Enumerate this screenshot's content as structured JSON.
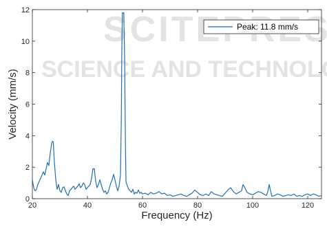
{
  "watermark": {
    "line1": "SCITEPRESS",
    "line2": "SCIENCE AND TECHNOLOGY PUBLICATIONS"
  },
  "chart_data": {
    "type": "line",
    "title": "",
    "xlabel": "Frequency (Hz)",
    "ylabel": "Velocity (mm/s)",
    "xlim": [
      20,
      125
    ],
    "ylim": [
      0,
      12
    ],
    "xticks": [
      20,
      40,
      60,
      80,
      100,
      120
    ],
    "yticks": [
      0,
      2,
      4,
      6,
      8,
      10,
      12
    ],
    "grid": false,
    "legend_position": "top-right",
    "line_color": "#1f6fb4",
    "series": [
      {
        "name": "Peak: 11.8 mm/s",
        "points": [
          [
            20,
            1.2
          ],
          [
            20.5,
            0.7
          ],
          [
            21,
            0.5
          ],
          [
            21.5,
            0.6
          ],
          [
            22,
            0.9
          ],
          [
            22.5,
            1.1
          ],
          [
            23,
            1.3
          ],
          [
            23.5,
            1.5
          ],
          [
            24,
            1.7
          ],
          [
            24.5,
            1.5
          ],
          [
            25,
            1.9
          ],
          [
            25.5,
            2.3
          ],
          [
            26,
            2.1
          ],
          [
            26.5,
            2.9
          ],
          [
            27,
            3.5
          ],
          [
            27.3,
            3.65
          ],
          [
            27.6,
            3.6
          ],
          [
            28,
            2.3
          ],
          [
            28.5,
            1.2
          ],
          [
            29,
            0.6
          ],
          [
            29.5,
            0.9
          ],
          [
            30,
            0.5
          ],
          [
            30.5,
            0.4
          ],
          [
            31,
            0.7
          ],
          [
            31.5,
            0.75
          ],
          [
            32,
            0.5
          ],
          [
            32.5,
            0.3
          ],
          [
            33,
            0.2
          ],
          [
            33.5,
            0.5
          ],
          [
            34,
            0.6
          ],
          [
            34.5,
            0.7
          ],
          [
            35,
            0.8
          ],
          [
            35.5,
            0.6
          ],
          [
            36,
            0.7
          ],
          [
            36.5,
            0.8
          ],
          [
            37,
            0.95
          ],
          [
            37.5,
            0.7
          ],
          [
            38,
            0.8
          ],
          [
            38.5,
            1.0
          ],
          [
            39,
            0.9
          ],
          [
            39.5,
            0.6
          ],
          [
            40,
            0.7
          ],
          [
            40.5,
            0.8
          ],
          [
            41,
            0.9
          ],
          [
            41.5,
            1.3
          ],
          [
            42,
            1.9
          ],
          [
            42.5,
            1.9
          ],
          [
            43,
            1.1
          ],
          [
            43.5,
            0.7
          ],
          [
            44,
            0.9
          ],
          [
            44.5,
            1.2
          ],
          [
            45,
            0.9
          ],
          [
            45.5,
            0.6
          ],
          [
            46,
            0.4
          ],
          [
            46.5,
            0.5
          ],
          [
            47,
            0.3
          ],
          [
            47.5,
            0.4
          ],
          [
            48,
            0.7
          ],
          [
            48.5,
            1.0
          ],
          [
            49,
            1.2
          ],
          [
            49.5,
            1.55
          ],
          [
            50,
            1.2
          ],
          [
            50.5,
            0.8
          ],
          [
            51,
            0.5
          ],
          [
            51.5,
            0.8
          ],
          [
            52,
            1.5
          ],
          [
            52.3,
            5.0
          ],
          [
            52.5,
            9.5
          ],
          [
            52.7,
            11.8
          ],
          [
            53.2,
            11.8
          ],
          [
            53.5,
            9.0
          ],
          [
            53.8,
            3.5
          ],
          [
            54,
            1.1
          ],
          [
            54.5,
            0.8
          ],
          [
            55,
            0.6
          ],
          [
            55.5,
            0.5
          ],
          [
            56,
            0.4
          ],
          [
            56.5,
            0.6
          ],
          [
            57,
            0.3
          ],
          [
            57.5,
            0.4
          ],
          [
            58,
            0.35
          ],
          [
            58.5,
            0.55
          ],
          [
            59,
            0.35
          ],
          [
            59.5,
            0.4
          ],
          [
            60,
            0.3
          ],
          [
            61,
            0.35
          ],
          [
            62,
            0.25
          ],
          [
            63,
            0.4
          ],
          [
            64,
            0.3
          ],
          [
            65,
            0.35
          ],
          [
            66,
            0.45
          ],
          [
            67,
            0.3
          ],
          [
            68,
            0.35
          ],
          [
            69,
            0.2
          ],
          [
            70,
            0.25
          ],
          [
            71,
            0.15
          ],
          [
            72,
            0.2
          ],
          [
            73,
            0.25
          ],
          [
            74,
            0.3
          ],
          [
            75,
            0.2
          ],
          [
            76,
            0.15
          ],
          [
            77,
            0.25
          ],
          [
            78,
            0.35
          ],
          [
            79,
            0.55
          ],
          [
            80,
            0.4
          ],
          [
            81,
            0.25
          ],
          [
            82,
            0.2
          ],
          [
            83,
            0.3
          ],
          [
            84,
            0.2
          ],
          [
            85,
            0.45
          ],
          [
            86,
            0.3
          ],
          [
            87,
            0.25
          ],
          [
            88,
            0.2
          ],
          [
            89,
            0.15
          ],
          [
            90,
            0.35
          ],
          [
            91,
            0.55
          ],
          [
            92,
            0.7
          ],
          [
            93,
            0.45
          ],
          [
            94,
            0.3
          ],
          [
            95,
            0.4
          ],
          [
            96,
            0.5
          ],
          [
            96.5,
            0.9
          ],
          [
            97,
            0.75
          ],
          [
            98,
            0.4
          ],
          [
            99,
            0.3
          ],
          [
            100,
            0.25
          ],
          [
            101,
            0.35
          ],
          [
            102,
            0.45
          ],
          [
            103,
            0.4
          ],
          [
            104,
            0.3
          ],
          [
            105,
            0.2
          ],
          [
            105.5,
            0.45
          ],
          [
            106,
            0.9
          ],
          [
            106.5,
            0.5
          ],
          [
            107,
            0.15
          ],
          [
            108,
            0.2
          ],
          [
            109,
            0.3
          ],
          [
            110,
            0.25
          ],
          [
            111,
            0.15
          ],
          [
            112,
            0.2
          ],
          [
            113,
            0.25
          ],
          [
            114,
            0.2
          ],
          [
            115,
            0.3
          ],
          [
            116,
            0.15
          ],
          [
            117,
            0.2
          ],
          [
            118,
            0.15
          ],
          [
            119,
            0.25
          ],
          [
            120,
            0.3
          ],
          [
            121,
            0.2
          ],
          [
            122,
            0.3
          ],
          [
            123,
            0.25
          ],
          [
            124,
            0.15
          ],
          [
            125,
            0.2
          ]
        ]
      }
    ]
  }
}
